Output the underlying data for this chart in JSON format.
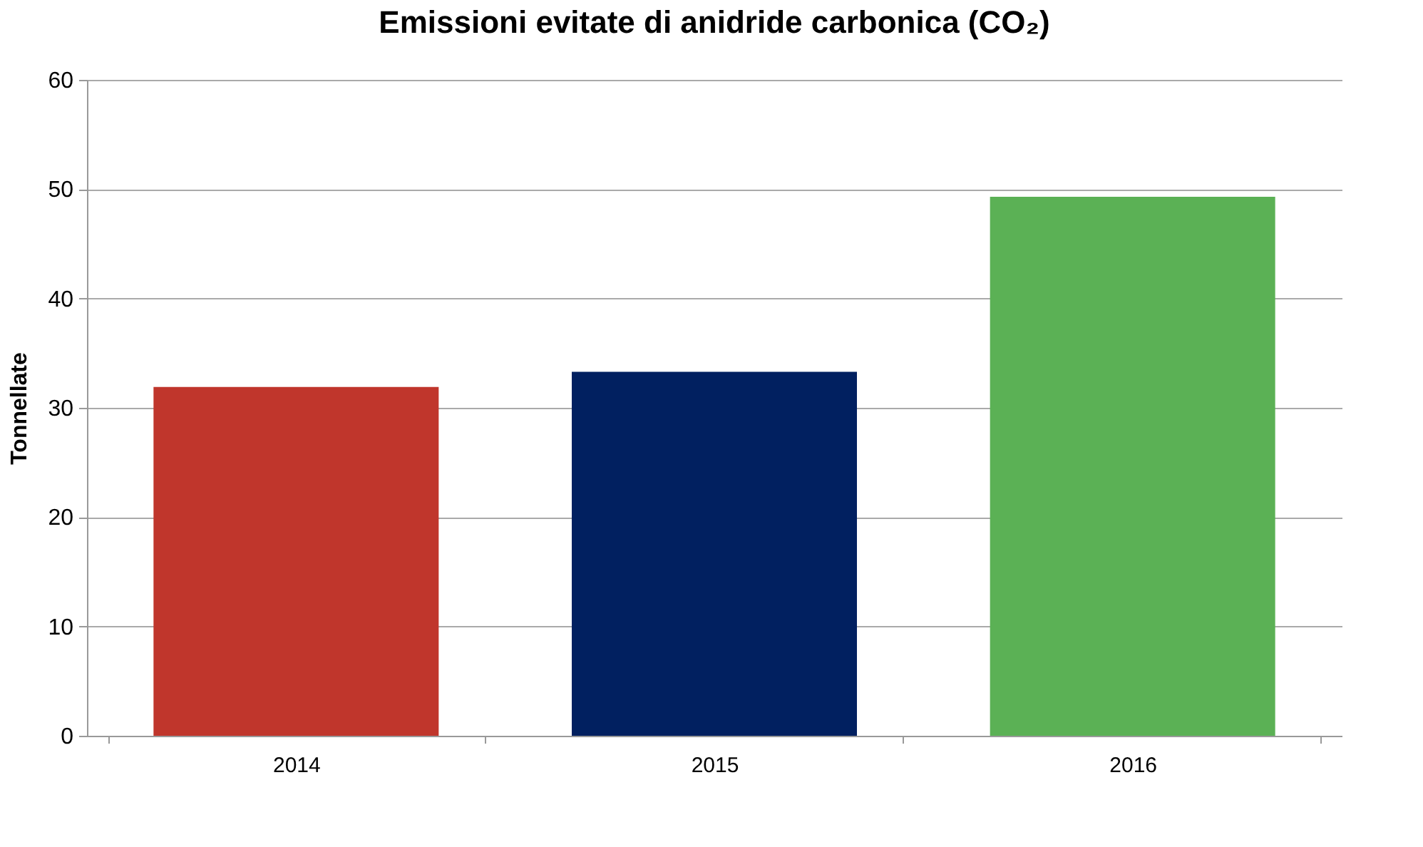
{
  "chart_data": {
    "type": "bar",
    "title": "Emissioni evitate di anidride carbonica (CO₂)",
    "ylabel": "Tonnellate",
    "categories": [
      "2014",
      "2015",
      "2016"
    ],
    "values": [
      31.9,
      33.3,
      49.3
    ],
    "colors": [
      "#c0362c",
      "#012060",
      "#5bb155"
    ],
    "ylim": [
      0,
      60
    ],
    "yticks": [
      0,
      10,
      20,
      30,
      40,
      50,
      60
    ],
    "grid": "y",
    "legend": false
  }
}
